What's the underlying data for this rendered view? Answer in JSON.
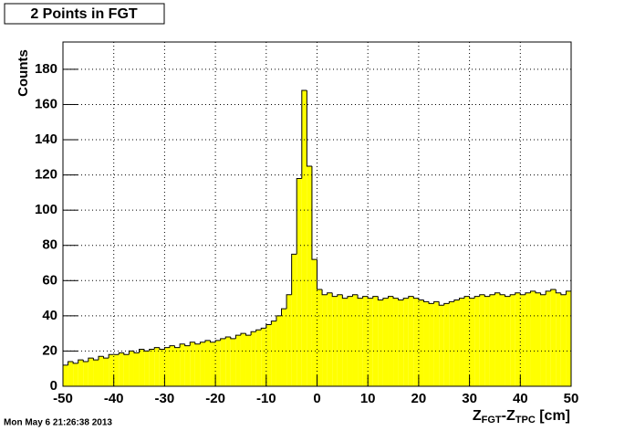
{
  "chart_data": {
    "type": "histogram",
    "title": "2 Points in FGT",
    "y_label": "Counts",
    "x_label": [
      "Z",
      "FGT",
      "-Z",
      "TPC",
      " [cm]"
    ],
    "timestamp": "Mon May  6 21:26:38 2013",
    "color": "#ffff00",
    "line_color": "#000000",
    "grid": true,
    "xlim": [
      -50,
      50
    ],
    "ylim": [
      0,
      195.5
    ],
    "xticks": [
      -50,
      -40,
      -30,
      -20,
      -10,
      0,
      10,
      20,
      30,
      40,
      50
    ],
    "yticks": [
      0,
      20,
      40,
      60,
      80,
      100,
      120,
      140,
      160,
      180
    ],
    "bins": [
      -50,
      -49,
      -48,
      -47,
      -46,
      -45,
      -44,
      -43,
      -42,
      -41,
      -40,
      -39,
      -38,
      -37,
      -36,
      -35,
      -34,
      -33,
      -32,
      -31,
      -30,
      -29,
      -28,
      -27,
      -26,
      -25,
      -24,
      -23,
      -22,
      -21,
      -20,
      -19,
      -18,
      -17,
      -16,
      -15,
      -14,
      -13,
      -12,
      -11,
      -10,
      -9,
      -8,
      -7,
      -6,
      -5,
      -4,
      -3,
      -2,
      -1,
      0,
      1,
      2,
      3,
      4,
      5,
      6,
      7,
      8,
      9,
      10,
      11,
      12,
      13,
      14,
      15,
      16,
      17,
      18,
      19,
      20,
      21,
      22,
      23,
      24,
      25,
      26,
      27,
      28,
      29,
      30,
      31,
      32,
      33,
      34,
      35,
      36,
      37,
      38,
      39,
      40,
      41,
      42,
      43,
      44,
      45,
      46,
      47,
      48,
      49,
      50
    ],
    "values": [
      12,
      14,
      13,
      15,
      14,
      16,
      15,
      17,
      16,
      18,
      18,
      19,
      18,
      20,
      19,
      21,
      20,
      21,
      22,
      21,
      22,
      23,
      22,
      24,
      23,
      25,
      24,
      25,
      26,
      25,
      26,
      27,
      28,
      27,
      29,
      30,
      29,
      31,
      32,
      33,
      35,
      37,
      40,
      44,
      52,
      75,
      118,
      168,
      125,
      72,
      55,
      52,
      53,
      51,
      52,
      50,
      51,
      52,
      50,
      51,
      50,
      51,
      49,
      50,
      51,
      50,
      49,
      50,
      51,
      50,
      49,
      48,
      47,
      48,
      46,
      47,
      48,
      49,
      50,
      51,
      50,
      51,
      52,
      51,
      52,
      53,
      52,
      51,
      52,
      53,
      52,
      53,
      54,
      53,
      52,
      54,
      55,
      53,
      52,
      54
    ]
  }
}
